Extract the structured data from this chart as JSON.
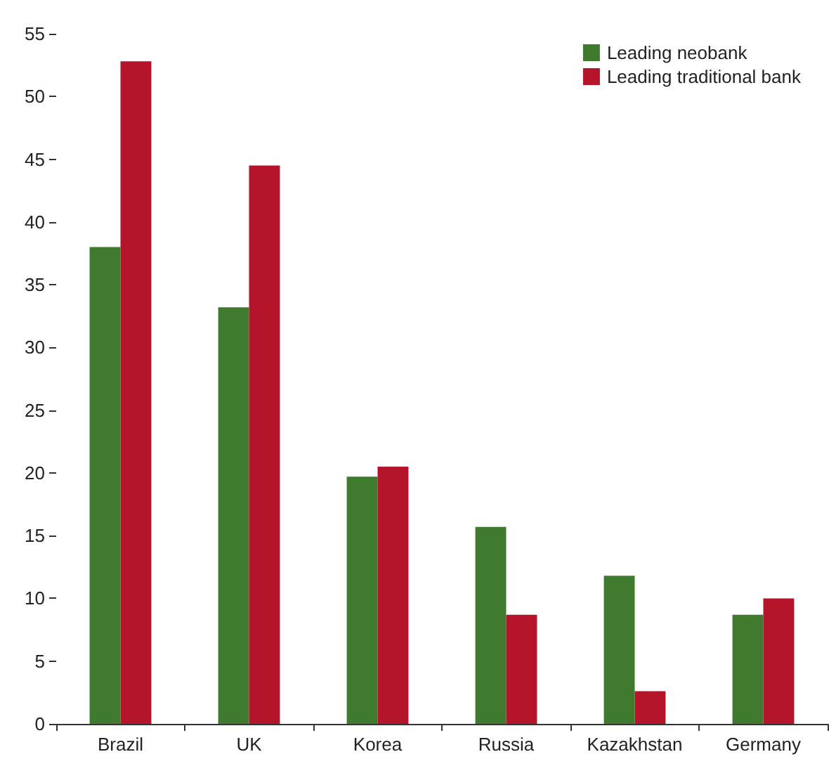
{
  "chart_data": {
    "type": "bar",
    "categories": [
      "Brazil",
      "UK",
      "Korea",
      "Russia",
      "Kazakhstan",
      "Germany"
    ],
    "series": [
      {
        "name": "Leading neobank",
        "color": "#3f7a2e",
        "values": [
          38,
          33.2,
          19.7,
          15.7,
          11.8,
          8.7
        ]
      },
      {
        "name": "Leading traditional bank",
        "color": "#b5152b",
        "values": [
          52.8,
          44.5,
          20.5,
          8.7,
          2.6,
          10
        ]
      }
    ],
    "ylim": [
      0,
      55
    ],
    "yticks": [
      0,
      5,
      10,
      15,
      20,
      25,
      30,
      35,
      40,
      45,
      50,
      55
    ],
    "grid": false,
    "legend": "top right"
  }
}
